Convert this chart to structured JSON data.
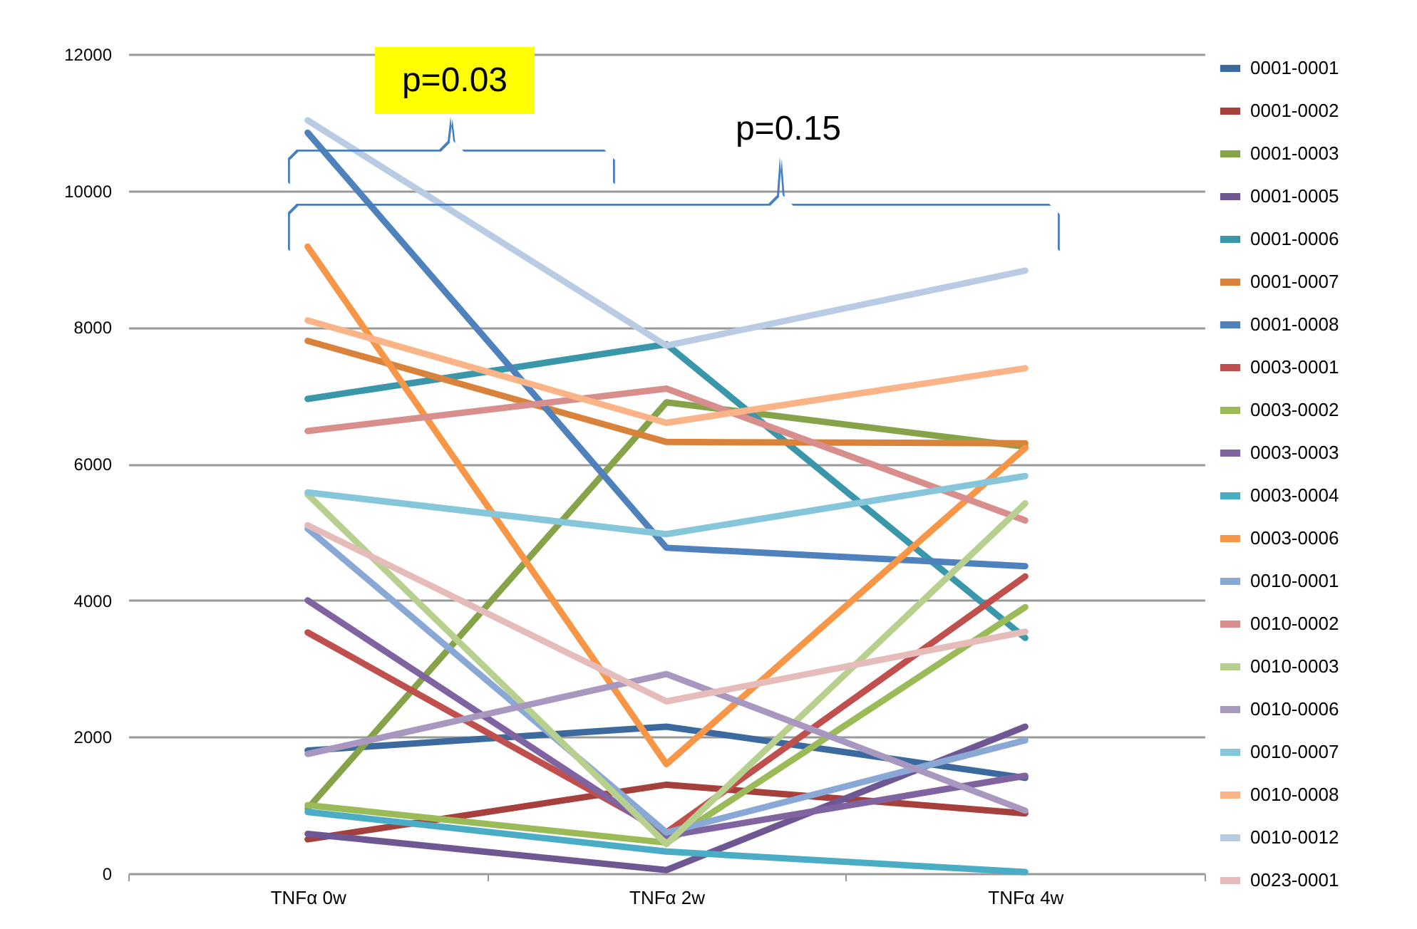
{
  "chart_data": {
    "type": "line",
    "categories": [
      "TNFα 0w",
      "TNFα 2w",
      "TNFα 4w"
    ],
    "ylim": [
      0,
      12000
    ],
    "yticks": [
      0,
      2000,
      4000,
      6000,
      8000,
      10000,
      12000
    ],
    "grid": "y",
    "legend": "right",
    "annotations": [
      "p=0.03",
      "p=0.15"
    ],
    "series": [
      {
        "name": "0001-0001",
        "color": "#3d6a9e",
        "values": [
          1800,
          2150,
          1400
        ]
      },
      {
        "name": "0001-0002",
        "color": "#a6403d",
        "values": [
          500,
          1300,
          880
        ]
      },
      {
        "name": "0001-0003",
        "color": "#86a34a",
        "values": [
          950,
          6900,
          6250
        ]
      },
      {
        "name": "0001-0005",
        "color": "#6e5793",
        "values": [
          580,
          50,
          2150
        ]
      },
      {
        "name": "0001-0006",
        "color": "#3a97aa",
        "values": [
          6950,
          7750,
          3450
        ]
      },
      {
        "name": "0001-0007",
        "color": "#d9823b",
        "values": [
          7800,
          6320,
          6300
        ]
      },
      {
        "name": "0001-0008",
        "color": "#4f81bd",
        "values": [
          10850,
          4770,
          4500
        ]
      },
      {
        "name": "0003-0001",
        "color": "#c0504d",
        "values": [
          3530,
          600,
          4350
        ]
      },
      {
        "name": "0003-0002",
        "color": "#9bbb59",
        "values": [
          1000,
          450,
          3900
        ]
      },
      {
        "name": "0003-0003",
        "color": "#8064a2",
        "values": [
          4000,
          550,
          1430
        ]
      },
      {
        "name": "0003-0004",
        "color": "#4bacc6",
        "values": [
          900,
          320,
          20
        ]
      },
      {
        "name": "0003-0006",
        "color": "#f79646",
        "values": [
          9180,
          1600,
          6230
        ]
      },
      {
        "name": "0010-0001",
        "color": "#8aa8d6",
        "values": [
          5050,
          600,
          1950
        ]
      },
      {
        "name": "0010-0002",
        "color": "#d78e8c",
        "values": [
          6480,
          7100,
          5170
        ]
      },
      {
        "name": "0010-0003",
        "color": "#b8d08e",
        "values": [
          5550,
          430,
          5420
        ]
      },
      {
        "name": "0010-0006",
        "color": "#a898c0",
        "values": [
          1750,
          2920,
          920
        ]
      },
      {
        "name": "0010-0007",
        "color": "#86c6da",
        "values": [
          5580,
          4970,
          5820
        ]
      },
      {
        "name": "0010-0008",
        "color": "#fab487",
        "values": [
          8100,
          6600,
          7400
        ]
      },
      {
        "name": "0010-0012",
        "color": "#b9cce4",
        "values": [
          11030,
          7730,
          8830
        ]
      },
      {
        "name": "0023-0001",
        "color": "#e6bcbb",
        "values": [
          5100,
          2520,
          3540
        ]
      }
    ]
  }
}
